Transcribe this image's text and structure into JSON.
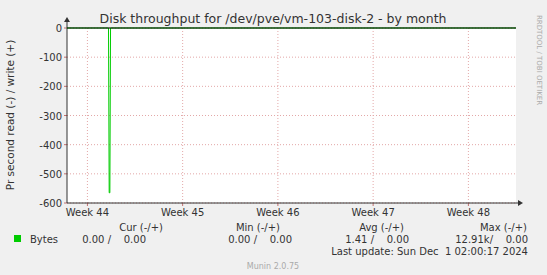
{
  "chart_data": {
    "type": "line",
    "title": "Disk throughput for /dev/pve/vm-103-disk-2 - by month",
    "y_label": "Pr second read (-) / write (+)",
    "watermark": "RRDTOOL / TOBI OETIKER",
    "x": [
      0,
      3.05,
      3.1,
      3.15,
      3.2,
      33
    ],
    "series": [
      {
        "name": "Bytes",
        "color": "#00cc00",
        "values": [
          0,
          0,
          -565,
          -565,
          0,
          0
        ]
      }
    ],
    "xlim": [
      0,
      33
    ],
    "xticks": [
      {
        "value": 1.5,
        "label": "Week 44"
      },
      {
        "value": 8.5,
        "label": "Week 45"
      },
      {
        "value": 15.5,
        "label": "Week 46"
      },
      {
        "value": 22.5,
        "label": "Week 47"
      },
      {
        "value": 29.5,
        "label": "Week 48"
      }
    ],
    "ylim": [
      -600,
      0
    ],
    "yticks": [
      0,
      -100,
      -200,
      -300,
      -400,
      -500,
      -600
    ],
    "grid": true,
    "legend_table": {
      "headers": [
        "Cur (-/+)",
        "Min (-/+)",
        "Avg (-/+)",
        "Max (-/+)"
      ],
      "rows": [
        {
          "cells": [
            "0.00 /    0.00",
            "0.00 /    0.00",
            "1.41 /    0.00",
            "12.91k/    0.00"
          ]
        }
      ]
    },
    "last_update": "Last update: Sun Dec  1 02:00:17 2024",
    "footer": "Munin 2.0.75"
  }
}
